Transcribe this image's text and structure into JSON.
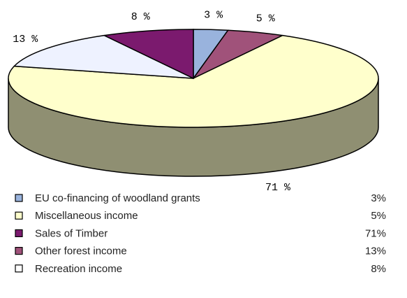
{
  "chart_data": {
    "type": "pie3d",
    "values": [
      3,
      5,
      71,
      13,
      8
    ],
    "value_labels": [
      "3 %",
      "5 %",
      "71 %",
      "13 %",
      "8 %"
    ],
    "colors": [
      "#99b3dd",
      "#a0527a",
      "#ffffcc",
      "#eef2ff",
      "#7b1a6e"
    ]
  },
  "legend_table": {
    "rows": [
      [
        "EU co-financing of woodland grants",
        "3%"
      ],
      [
        "Miscellaneous income",
        "5%"
      ],
      [
        "Sales of Timber",
        "71%"
      ],
      [
        "Other forest income",
        "13%"
      ],
      [
        "Recreation income",
        "8%"
      ]
    ],
    "colors": [
      "#99b3dd",
      "#ffffcc",
      "#7b1a6e",
      "#a0527a",
      "#ffffff"
    ]
  }
}
